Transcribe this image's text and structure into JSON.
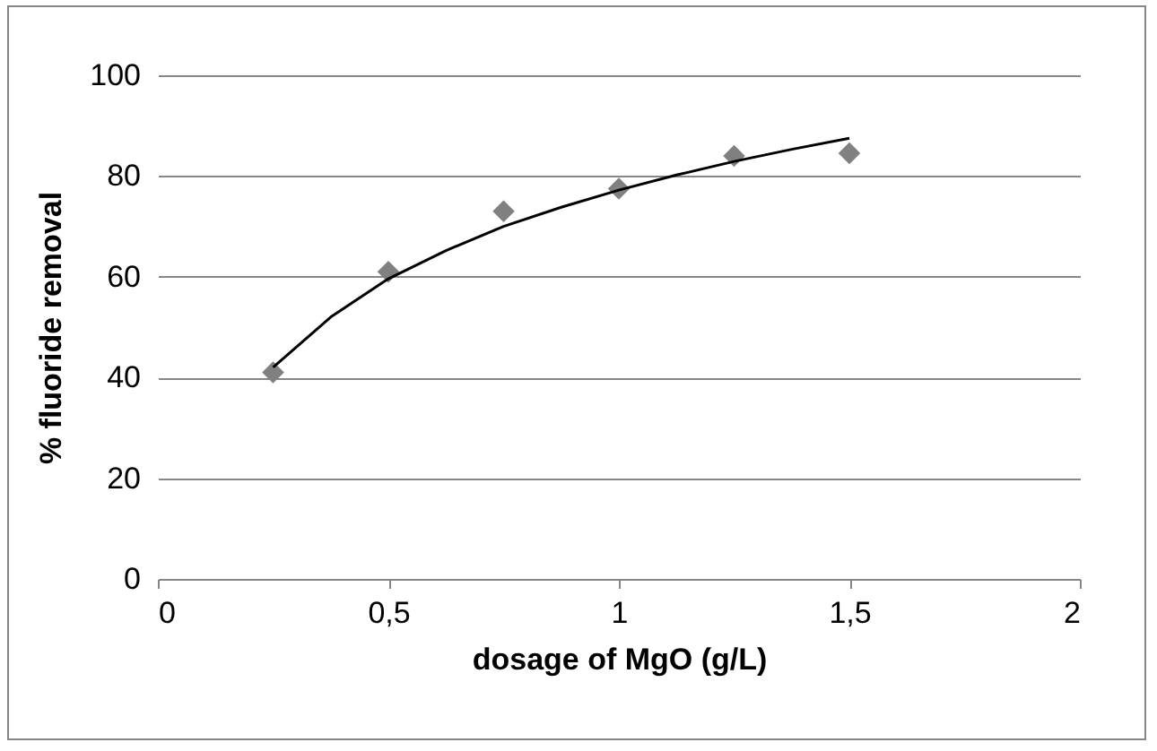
{
  "chart_data": {
    "type": "scatter",
    "xlabel": "dosage of MgO (g/L)",
    "ylabel": "% fluoride removal",
    "x": [
      0.25,
      0.5,
      0.75,
      1,
      1.25,
      1.5
    ],
    "series": [
      {
        "type": "scatter",
        "color": "#808080",
        "marker": "diamond",
        "values": [
          41,
          61,
          73,
          77.5,
          84,
          84.5
        ]
      },
      {
        "type": "line",
        "color": "#000000",
        "marker": "none",
        "x": [
          0.25,
          0.375,
          0.5,
          0.625,
          0.75,
          0.875,
          1,
          1.125,
          1.25,
          1.375,
          1.5
        ],
        "values": [
          42,
          52,
          59.6,
          65.2,
          70,
          73.8,
          77.2,
          80.2,
          82.9,
          85.3,
          87.5
        ]
      }
    ],
    "xlim": [
      0,
      2
    ],
    "xticks": [
      0,
      {
        "value": 0.5,
        "label": "0,5"
      },
      1,
      {
        "value": 1.5,
        "label": "1,5"
      },
      2
    ],
    "ylim": [
      0,
      100
    ],
    "yticks": [
      0,
      20,
      40,
      60,
      80,
      100
    ],
    "grid": "y",
    "legend": false
  }
}
